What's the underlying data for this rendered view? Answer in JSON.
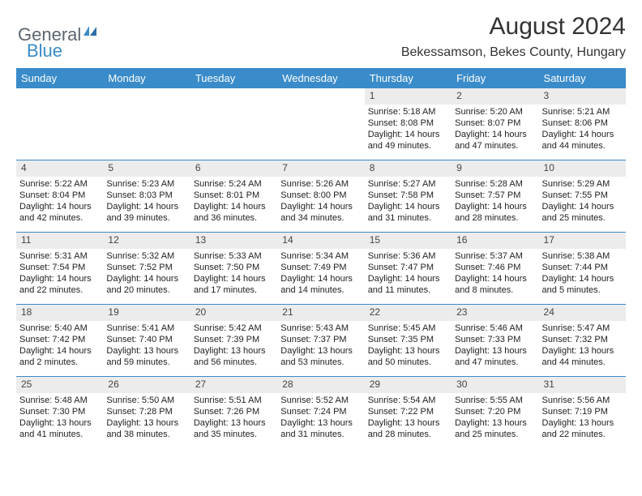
{
  "logo": {
    "text1": "General",
    "text2": "Blue",
    "color1": "#5c6670",
    "color2": "#3a8bc9"
  },
  "title": "August 2024",
  "subtitle": "Bekessamson, Bekes County, Hungary",
  "colors": {
    "header_bg": "#3a8bc9",
    "header_text": "#ffffff",
    "daynum_bg": "#ececec",
    "week_divider": "#3a8bc9",
    "body_text": "#222222",
    "page_bg": "#ffffff"
  },
  "typography": {
    "title_fontsize": 30,
    "subtitle_fontsize": 16,
    "header_fontsize": 13,
    "cell_fontsize": 11
  },
  "day_names": [
    "Sunday",
    "Monday",
    "Tuesday",
    "Wednesday",
    "Thursday",
    "Friday",
    "Saturday"
  ],
  "weeks": [
    [
      null,
      null,
      null,
      null,
      {
        "d": "1",
        "sr": "5:18 AM",
        "ss": "8:08 PM",
        "dl": "14 hours and 49 minutes."
      },
      {
        "d": "2",
        "sr": "5:20 AM",
        "ss": "8:07 PM",
        "dl": "14 hours and 47 minutes."
      },
      {
        "d": "3",
        "sr": "5:21 AM",
        "ss": "8:06 PM",
        "dl": "14 hours and 44 minutes."
      }
    ],
    [
      {
        "d": "4",
        "sr": "5:22 AM",
        "ss": "8:04 PM",
        "dl": "14 hours and 42 minutes."
      },
      {
        "d": "5",
        "sr": "5:23 AM",
        "ss": "8:03 PM",
        "dl": "14 hours and 39 minutes."
      },
      {
        "d": "6",
        "sr": "5:24 AM",
        "ss": "8:01 PM",
        "dl": "14 hours and 36 minutes."
      },
      {
        "d": "7",
        "sr": "5:26 AM",
        "ss": "8:00 PM",
        "dl": "14 hours and 34 minutes."
      },
      {
        "d": "8",
        "sr": "5:27 AM",
        "ss": "7:58 PM",
        "dl": "14 hours and 31 minutes."
      },
      {
        "d": "9",
        "sr": "5:28 AM",
        "ss": "7:57 PM",
        "dl": "14 hours and 28 minutes."
      },
      {
        "d": "10",
        "sr": "5:29 AM",
        "ss": "7:55 PM",
        "dl": "14 hours and 25 minutes."
      }
    ],
    [
      {
        "d": "11",
        "sr": "5:31 AM",
        "ss": "7:54 PM",
        "dl": "14 hours and 22 minutes."
      },
      {
        "d": "12",
        "sr": "5:32 AM",
        "ss": "7:52 PM",
        "dl": "14 hours and 20 minutes."
      },
      {
        "d": "13",
        "sr": "5:33 AM",
        "ss": "7:50 PM",
        "dl": "14 hours and 17 minutes."
      },
      {
        "d": "14",
        "sr": "5:34 AM",
        "ss": "7:49 PM",
        "dl": "14 hours and 14 minutes."
      },
      {
        "d": "15",
        "sr": "5:36 AM",
        "ss": "7:47 PM",
        "dl": "14 hours and 11 minutes."
      },
      {
        "d": "16",
        "sr": "5:37 AM",
        "ss": "7:46 PM",
        "dl": "14 hours and 8 minutes."
      },
      {
        "d": "17",
        "sr": "5:38 AM",
        "ss": "7:44 PM",
        "dl": "14 hours and 5 minutes."
      }
    ],
    [
      {
        "d": "18",
        "sr": "5:40 AM",
        "ss": "7:42 PM",
        "dl": "14 hours and 2 minutes."
      },
      {
        "d": "19",
        "sr": "5:41 AM",
        "ss": "7:40 PM",
        "dl": "13 hours and 59 minutes."
      },
      {
        "d": "20",
        "sr": "5:42 AM",
        "ss": "7:39 PM",
        "dl": "13 hours and 56 minutes."
      },
      {
        "d": "21",
        "sr": "5:43 AM",
        "ss": "7:37 PM",
        "dl": "13 hours and 53 minutes."
      },
      {
        "d": "22",
        "sr": "5:45 AM",
        "ss": "7:35 PM",
        "dl": "13 hours and 50 minutes."
      },
      {
        "d": "23",
        "sr": "5:46 AM",
        "ss": "7:33 PM",
        "dl": "13 hours and 47 minutes."
      },
      {
        "d": "24",
        "sr": "5:47 AM",
        "ss": "7:32 PM",
        "dl": "13 hours and 44 minutes."
      }
    ],
    [
      {
        "d": "25",
        "sr": "5:48 AM",
        "ss": "7:30 PM",
        "dl": "13 hours and 41 minutes."
      },
      {
        "d": "26",
        "sr": "5:50 AM",
        "ss": "7:28 PM",
        "dl": "13 hours and 38 minutes."
      },
      {
        "d": "27",
        "sr": "5:51 AM",
        "ss": "7:26 PM",
        "dl": "13 hours and 35 minutes."
      },
      {
        "d": "28",
        "sr": "5:52 AM",
        "ss": "7:24 PM",
        "dl": "13 hours and 31 minutes."
      },
      {
        "d": "29",
        "sr": "5:54 AM",
        "ss": "7:22 PM",
        "dl": "13 hours and 28 minutes."
      },
      {
        "d": "30",
        "sr": "5:55 AM",
        "ss": "7:20 PM",
        "dl": "13 hours and 25 minutes."
      },
      {
        "d": "31",
        "sr": "5:56 AM",
        "ss": "7:19 PM",
        "dl": "13 hours and 22 minutes."
      }
    ]
  ],
  "labels": {
    "sunrise": "Sunrise: ",
    "sunset": "Sunset: ",
    "daylight": "Daylight: "
  }
}
